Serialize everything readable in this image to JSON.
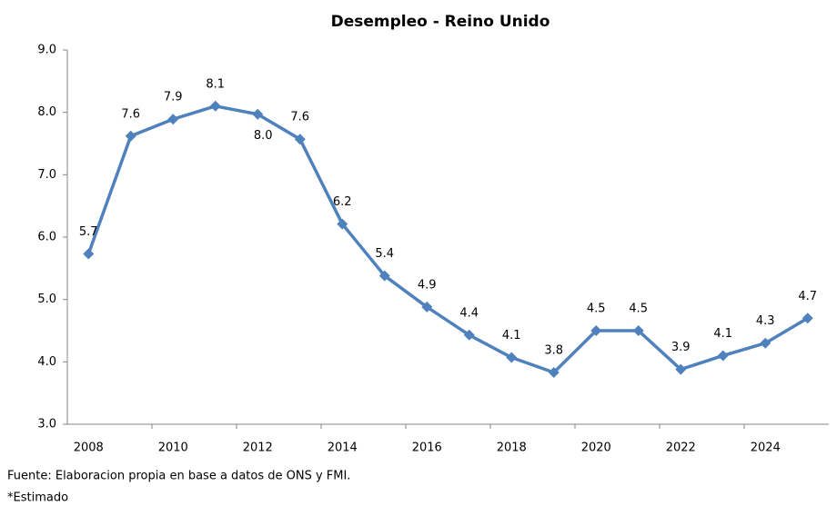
{
  "chart_data": {
    "type": "line",
    "title": "Desempleo - Reino Unido",
    "categories": [
      "2008",
      null,
      "2010",
      null,
      "2012",
      null,
      "2014",
      null,
      "2016",
      null,
      "2018",
      null,
      "2020",
      null,
      "2022",
      null,
      "2024",
      null
    ],
    "series": [
      {
        "name": "Desempleo",
        "color": "#4f81bd",
        "values": [
          5.73,
          7.62,
          7.89,
          8.1,
          7.97,
          7.57,
          6.21,
          5.38,
          4.88,
          4.43,
          4.07,
          3.83,
          4.5,
          4.5,
          3.88,
          4.1,
          4.3,
          4.7
        ],
        "value_labels": [
          "5.7",
          "7.6",
          "7.9",
          "8.1",
          "8.0",
          "7.6",
          "6.2",
          "5.4",
          "4.9",
          "4.4",
          "4.1",
          "3.8",
          "4.5",
          "4.5",
          "3.9",
          "4.1",
          "4.3",
          "4.7"
        ]
      }
    ],
    "ylim": [
      3,
      9
    ],
    "yticks": [
      {
        "value": 3,
        "label": "3.0"
      },
      {
        "value": 4,
        "label": "4.0"
      },
      {
        "value": 5,
        "label": "5.0"
      },
      {
        "value": 6,
        "label": "6.0"
      },
      {
        "value": 7,
        "label": "7.0"
      },
      {
        "value": 8,
        "label": "8.0"
      },
      {
        "value": 9,
        "label": "9.0"
      }
    ],
    "grid": false,
    "source": "Fuente: Elaboracion propia en base a datos de ONS y FMI.",
    "note": "*Estimado"
  }
}
